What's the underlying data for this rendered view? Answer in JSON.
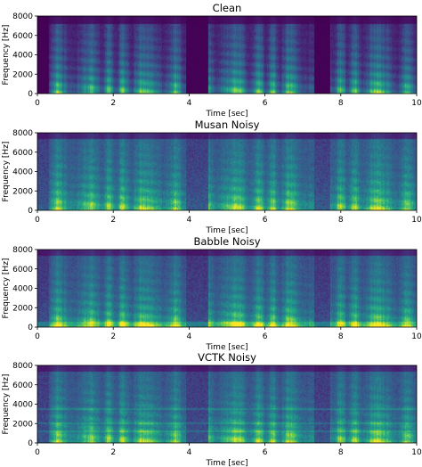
{
  "chart_data": [
    {
      "type": "heatmap",
      "title": "Clean",
      "xlabel": "Time [sec]",
      "ylabel": "Frequency [Hz]",
      "xlim": [
        0,
        10
      ],
      "ylim": [
        0,
        8000
      ],
      "xticks": [
        "0",
        "2",
        "4",
        "6",
        "8",
        "10"
      ],
      "yticks": [
        "0",
        "2000",
        "4000",
        "6000",
        "8000"
      ],
      "colormap": "viridis",
      "noise_floor": 0.05,
      "speech_segments": [
        [
          0.3,
          3.9
        ],
        [
          4.5,
          7.3
        ],
        [
          7.7,
          10.0
        ]
      ]
    },
    {
      "type": "heatmap",
      "title": "Musan Noisy",
      "xlabel": "Time [sec]",
      "ylabel": "Frequency [Hz]",
      "xlim": [
        0,
        10
      ],
      "ylim": [
        0,
        8000
      ],
      "xticks": [
        "0",
        "2",
        "4",
        "6",
        "8",
        "10"
      ],
      "yticks": [
        "0",
        "2000",
        "4000",
        "6000",
        "8000"
      ],
      "colormap": "viridis",
      "noise_floor": 0.32,
      "speech_segments": [
        [
          0.3,
          3.9
        ],
        [
          4.5,
          7.3
        ],
        [
          7.7,
          10.0
        ]
      ]
    },
    {
      "type": "heatmap",
      "title": "Babble Noisy",
      "xlabel": "Time [sec]",
      "ylabel": "Frequency [Hz]",
      "xlim": [
        0,
        10
      ],
      "ylim": [
        0,
        8000
      ],
      "xticks": [
        "0",
        "2",
        "4",
        "6",
        "8",
        "10"
      ],
      "yticks": [
        "0",
        "2000",
        "4000",
        "6000",
        "8000"
      ],
      "colormap": "viridis",
      "noise_floor": 0.28,
      "speech_segments": [
        [
          0.3,
          3.9
        ],
        [
          4.5,
          7.3
        ],
        [
          7.7,
          10.0
        ]
      ]
    },
    {
      "type": "heatmap",
      "title": "VCTK Noisy",
      "xlabel": "Time [sec]",
      "ylabel": "Frequency [Hz]",
      "xlim": [
        0,
        10
      ],
      "ylim": [
        0,
        8000
      ],
      "xticks": [
        "0",
        "2",
        "4",
        "6",
        "8",
        "10"
      ],
      "yticks": [
        "0",
        "2000",
        "4000",
        "6000",
        "8000"
      ],
      "colormap": "viridis",
      "noise_floor": 0.3,
      "speech_segments": [
        [
          0.3,
          3.9
        ],
        [
          4.5,
          7.3
        ],
        [
          7.7,
          10.0
        ]
      ]
    }
  ]
}
